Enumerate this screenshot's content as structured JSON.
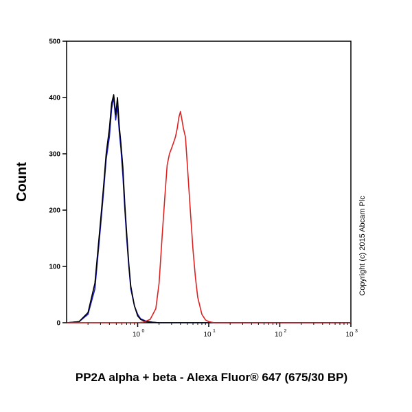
{
  "chart_data": {
    "type": "line",
    "title": "",
    "xlabel": "PP2A alpha + beta - Alexa Fluor® 647 (675/30 BP)",
    "ylabel": "Count",
    "xscale": "log",
    "xlim": [
      0.1,
      1000
    ],
    "ylim": [
      0,
      500
    ],
    "yticks": [
      0,
      100,
      200,
      300,
      400,
      500
    ],
    "yticklabels": [
      "0",
      "100",
      "200",
      "300",
      "400",
      "500"
    ],
    "xticks": [
      1,
      10,
      100,
      1000
    ],
    "xtick_base": "10",
    "xtick_exponents": [
      "0",
      "1",
      "2",
      "3"
    ],
    "grid": false,
    "annotation": "Copyright (c) 2015 Abcam Plc",
    "series": [
      {
        "color": "#1a1acc",
        "x": [
          0.1,
          0.15,
          0.2,
          0.25,
          0.3,
          0.33,
          0.36,
          0.4,
          0.43,
          0.46,
          0.49,
          0.52,
          0.55,
          0.58,
          0.62,
          0.66,
          0.7,
          0.75,
          0.8,
          0.9,
          1.0,
          1.1,
          1.3,
          1.6,
          2.0,
          1000
        ],
        "y": [
          0,
          2,
          15,
          60,
          170,
          230,
          290,
          330,
          380,
          400,
          360,
          385,
          340,
          310,
          260,
          200,
          150,
          100,
          60,
          30,
          15,
          7,
          3,
          1,
          0,
          0
        ]
      },
      {
        "color": "#000000",
        "x": [
          0.1,
          0.15,
          0.2,
          0.25,
          0.3,
          0.33,
          0.36,
          0.4,
          0.43,
          0.46,
          0.49,
          0.52,
          0.55,
          0.58,
          0.62,
          0.66,
          0.7,
          0.75,
          0.8,
          0.9,
          1.0,
          1.1,
          1.3,
          1.6,
          2.0,
          1000
        ],
        "y": [
          0,
          2,
          18,
          70,
          180,
          240,
          300,
          345,
          390,
          405,
          370,
          400,
          350,
          320,
          275,
          210,
          160,
          105,
          65,
          30,
          12,
          6,
          2,
          1,
          0,
          0
        ]
      },
      {
        "color": "#dd2222",
        "x": [
          0.1,
          1.0,
          1.2,
          1.5,
          1.8,
          2.0,
          2.2,
          2.4,
          2.6,
          2.8,
          3.0,
          3.2,
          3.4,
          3.6,
          3.8,
          4.0,
          4.2,
          4.4,
          4.7,
          5.0,
          5.5,
          6.0,
          6.5,
          7.0,
          8.0,
          9.0,
          10.0,
          12.0,
          1000
        ],
        "y": [
          0,
          0,
          1,
          6,
          25,
          70,
          150,
          220,
          280,
          300,
          310,
          320,
          330,
          345,
          365,
          375,
          360,
          345,
          330,
          280,
          200,
          130,
          80,
          45,
          15,
          5,
          2,
          0,
          0
        ]
      }
    ]
  }
}
